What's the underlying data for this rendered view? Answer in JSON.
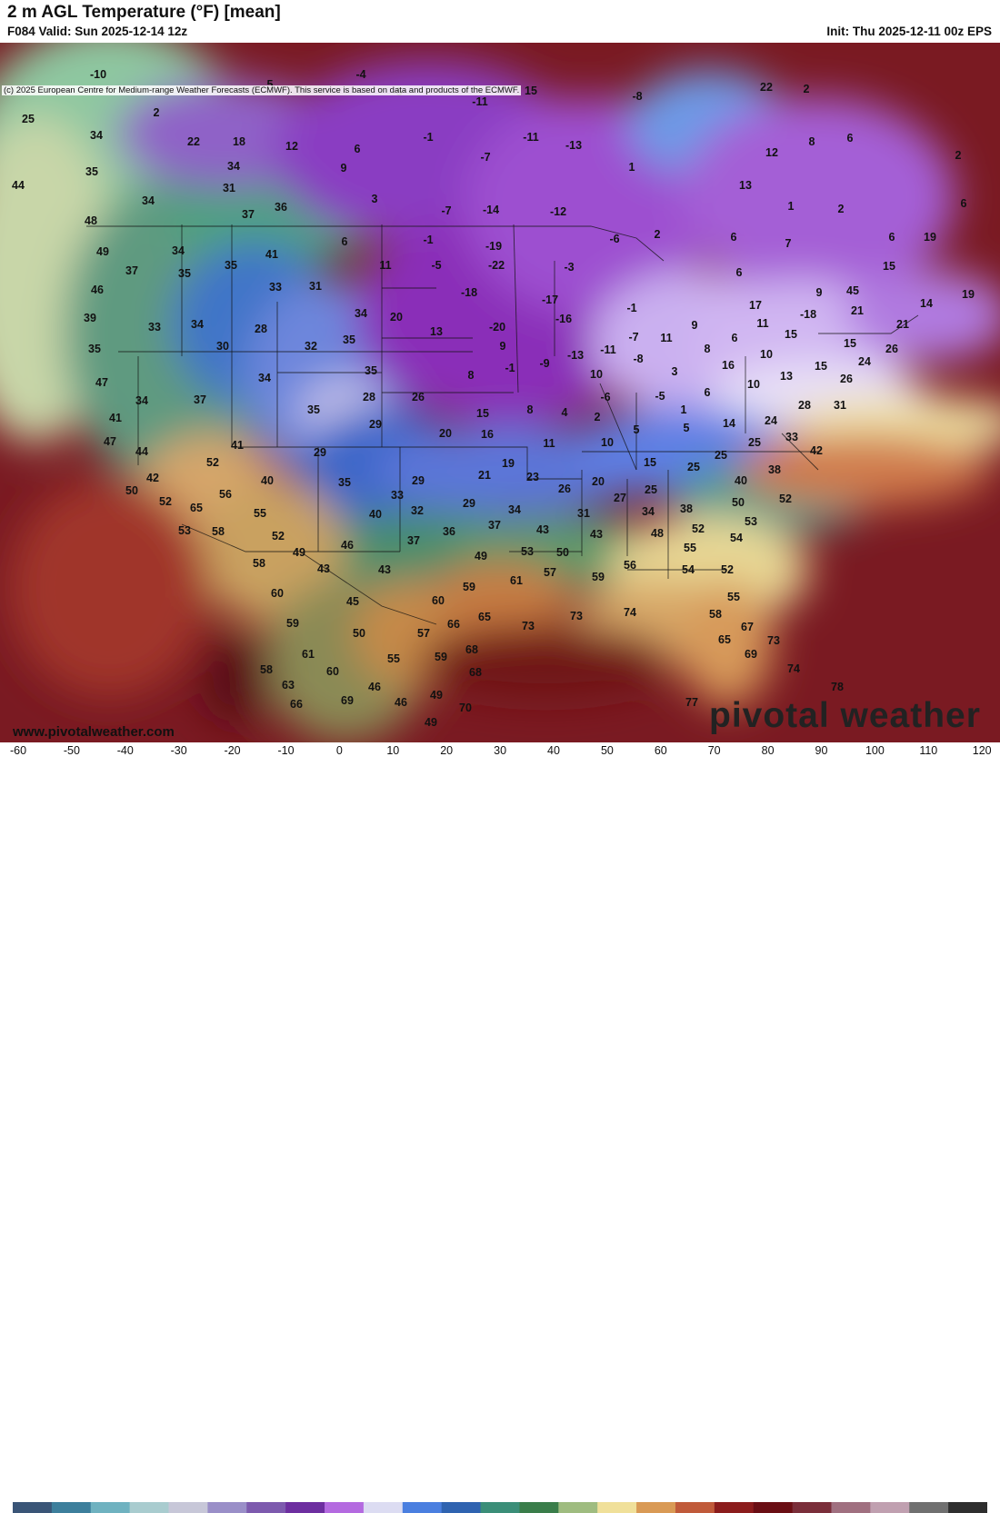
{
  "header": {
    "title": "2 m AGL Temperature (°F) [mean]",
    "valid": "F084 Valid: Sun 2025-12-14 12z",
    "init": "Init: Thu 2025-12-11 00z EPS"
  },
  "map": {
    "copyright": "(c) 2025 European Centre for Medium-range Weather Forecasts (ECMWF). This service is based on data and products of the ECMWF.",
    "website": "www.pivotalweather.com",
    "brand": "pivotal weather",
    "labels": [
      [
        "-10",
        108,
        82
      ],
      [
        "5",
        297,
        93
      ],
      [
        "-4",
        397,
        82
      ],
      [
        "-5",
        437,
        101
      ],
      [
        "15",
        584,
        100
      ],
      [
        "-8",
        701,
        106
      ],
      [
        "22",
        843,
        96
      ],
      [
        "2",
        887,
        98
      ],
      [
        "25",
        31,
        131
      ],
      [
        "2",
        172,
        124
      ],
      [
        "-11",
        528,
        112
      ],
      [
        "-1",
        471,
        151
      ],
      [
        "-11",
        584,
        151
      ],
      [
        "-13",
        631,
        160
      ],
      [
        "8",
        893,
        156
      ],
      [
        "6",
        935,
        152
      ],
      [
        "2",
        1054,
        171
      ],
      [
        "34",
        106,
        149
      ],
      [
        "22",
        213,
        156
      ],
      [
        "18",
        263,
        156
      ],
      [
        "12",
        321,
        161
      ],
      [
        "6",
        393,
        164
      ],
      [
        "-7",
        534,
        173
      ],
      [
        "12",
        849,
        168
      ],
      [
        "35",
        101,
        189
      ],
      [
        "34",
        257,
        183
      ],
      [
        "9",
        378,
        185
      ],
      [
        "1",
        695,
        184
      ],
      [
        "13",
        820,
        204
      ],
      [
        "44",
        20,
        204
      ],
      [
        "31",
        252,
        207
      ],
      [
        "34",
        163,
        221
      ],
      [
        "3",
        412,
        219
      ],
      [
        "-7",
        491,
        232
      ],
      [
        "-14",
        540,
        231
      ],
      [
        "-12",
        614,
        233
      ],
      [
        "1",
        870,
        227
      ],
      [
        "2",
        925,
        230
      ],
      [
        "6",
        1060,
        224
      ],
      [
        "48",
        100,
        243
      ],
      [
        "37",
        273,
        236
      ],
      [
        "36",
        309,
        228
      ],
      [
        "-1",
        471,
        264
      ],
      [
        "-19",
        543,
        271
      ],
      [
        "-6",
        676,
        263
      ],
      [
        "2",
        723,
        258
      ],
      [
        "6",
        807,
        261
      ],
      [
        "7",
        867,
        268
      ],
      [
        "6",
        981,
        261
      ],
      [
        "19",
        1023,
        261
      ],
      [
        "49",
        113,
        277
      ],
      [
        "34",
        196,
        276
      ],
      [
        "41",
        299,
        280
      ],
      [
        "6",
        379,
        266
      ],
      [
        "11",
        424,
        292
      ],
      [
        "-5",
        480,
        292
      ],
      [
        "-22",
        546,
        292
      ],
      [
        "-3",
        626,
        294
      ],
      [
        "6",
        813,
        300
      ],
      [
        "15",
        978,
        293
      ],
      [
        "37",
        145,
        298
      ],
      [
        "35",
        203,
        301
      ],
      [
        "35",
        254,
        292
      ],
      [
        "33",
        303,
        316
      ],
      [
        "31",
        347,
        315
      ],
      [
        "-18",
        516,
        322
      ],
      [
        "-17",
        605,
        330
      ],
      [
        "9",
        901,
        322
      ],
      [
        "45",
        938,
        320
      ],
      [
        "14",
        1019,
        334
      ],
      [
        "19",
        1065,
        324
      ],
      [
        "46",
        107,
        319
      ],
      [
        "34",
        397,
        345
      ],
      [
        "20",
        436,
        349
      ],
      [
        "-16",
        620,
        351
      ],
      [
        "-1",
        695,
        339
      ],
      [
        "17",
        831,
        336
      ],
      [
        "-18",
        889,
        346
      ],
      [
        "21",
        943,
        342
      ],
      [
        "39",
        99,
        350
      ],
      [
        "33",
        170,
        360
      ],
      [
        "34",
        217,
        357
      ],
      [
        "28",
        287,
        362
      ],
      [
        "13",
        480,
        365
      ],
      [
        "-20",
        547,
        360
      ],
      [
        "11",
        733,
        372
      ],
      [
        "9",
        764,
        358
      ],
      [
        "11",
        839,
        356
      ],
      [
        "15",
        870,
        368
      ],
      [
        "21",
        993,
        357
      ],
      [
        "35",
        104,
        384
      ],
      [
        "30",
        245,
        381
      ],
      [
        "32",
        342,
        381
      ],
      [
        "35",
        384,
        374
      ],
      [
        "9",
        553,
        381
      ],
      [
        "-9",
        599,
        400
      ],
      [
        "-13",
        633,
        391
      ],
      [
        "-11",
        669,
        385
      ],
      [
        "-7",
        697,
        371
      ],
      [
        "8",
        778,
        384
      ],
      [
        "6",
        808,
        372
      ],
      [
        "10",
        843,
        390
      ],
      [
        "15",
        935,
        378
      ],
      [
        "26",
        981,
        384
      ],
      [
        "47",
        112,
        421
      ],
      [
        "34",
        291,
        416
      ],
      [
        "35",
        408,
        408
      ],
      [
        "8",
        518,
        413
      ],
      [
        "-1",
        561,
        405
      ],
      [
        "10",
        656,
        412
      ],
      [
        "-8",
        702,
        395
      ],
      [
        "3",
        742,
        409
      ],
      [
        "16",
        801,
        402
      ],
      [
        "13",
        865,
        414
      ],
      [
        "15",
        903,
        403
      ],
      [
        "24",
        951,
        398
      ],
      [
        "34",
        156,
        441
      ],
      [
        "37",
        220,
        440
      ],
      [
        "28",
        406,
        437
      ],
      [
        "26",
        460,
        437
      ],
      [
        "-6",
        666,
        437
      ],
      [
        "-5",
        726,
        436
      ],
      [
        "6",
        778,
        432
      ],
      [
        "10",
        829,
        423
      ],
      [
        "26",
        931,
        417
      ],
      [
        "41",
        127,
        460
      ],
      [
        "35",
        345,
        451
      ],
      [
        "29",
        413,
        467
      ],
      [
        "8",
        583,
        451
      ],
      [
        "4",
        621,
        454
      ],
      [
        "2",
        657,
        459
      ],
      [
        "1",
        752,
        451
      ],
      [
        "14",
        802,
        466
      ],
      [
        "24",
        848,
        463
      ],
      [
        "28",
        885,
        446
      ],
      [
        "31",
        924,
        446
      ],
      [
        "47",
        121,
        486
      ],
      [
        "41",
        261,
        490
      ],
      [
        "29",
        352,
        498
      ],
      [
        "20",
        490,
        477
      ],
      [
        "15",
        531,
        455
      ],
      [
        "16",
        536,
        478
      ],
      [
        "11",
        604,
        488
      ],
      [
        "10",
        668,
        487
      ],
      [
        "5",
        700,
        473
      ],
      [
        "5",
        755,
        471
      ],
      [
        "25",
        830,
        487
      ],
      [
        "33",
        871,
        481
      ],
      [
        "42",
        898,
        496
      ],
      [
        "44",
        156,
        497
      ],
      [
        "52",
        234,
        509
      ],
      [
        "19",
        559,
        510
      ],
      [
        "15",
        715,
        509
      ],
      [
        "25",
        763,
        514
      ],
      [
        "25",
        793,
        501
      ],
      [
        "38",
        852,
        517
      ],
      [
        "42",
        168,
        526
      ],
      [
        "40",
        294,
        529
      ],
      [
        "35",
        379,
        531
      ],
      [
        "29",
        460,
        529
      ],
      [
        "21",
        533,
        523
      ],
      [
        "23",
        586,
        525
      ],
      [
        "20",
        658,
        530
      ],
      [
        "40",
        815,
        529
      ],
      [
        "50",
        145,
        540
      ],
      [
        "56",
        248,
        544
      ],
      [
        "33",
        437,
        545
      ],
      [
        "26",
        621,
        538
      ],
      [
        "27",
        682,
        548
      ],
      [
        "25",
        716,
        539
      ],
      [
        "52",
        864,
        549
      ],
      [
        "52",
        182,
        552
      ],
      [
        "65",
        216,
        559
      ],
      [
        "55",
        286,
        565
      ],
      [
        "40",
        413,
        566
      ],
      [
        "32",
        459,
        562
      ],
      [
        "29",
        516,
        554
      ],
      [
        "34",
        566,
        561
      ],
      [
        "31",
        642,
        565
      ],
      [
        "34",
        713,
        563
      ],
      [
        "38",
        755,
        560
      ],
      [
        "50",
        812,
        553
      ],
      [
        "53",
        826,
        574
      ],
      [
        "53",
        203,
        584
      ],
      [
        "58",
        240,
        585
      ],
      [
        "52",
        306,
        590
      ],
      [
        "46",
        382,
        600
      ],
      [
        "37",
        455,
        595
      ],
      [
        "36",
        494,
        585
      ],
      [
        "37",
        544,
        578
      ],
      [
        "43",
        597,
        583
      ],
      [
        "43",
        656,
        588
      ],
      [
        "48",
        723,
        587
      ],
      [
        "52",
        768,
        582
      ],
      [
        "55",
        759,
        603
      ],
      [
        "54",
        810,
        592
      ],
      [
        "49",
        329,
        608
      ],
      [
        "58",
        285,
        620
      ],
      [
        "43",
        356,
        626
      ],
      [
        "43",
        423,
        627
      ],
      [
        "49",
        529,
        612
      ],
      [
        "53",
        580,
        607
      ],
      [
        "50",
        619,
        608
      ],
      [
        "57",
        605,
        630
      ],
      [
        "59",
        658,
        635
      ],
      [
        "56",
        693,
        622
      ],
      [
        "54",
        757,
        627
      ],
      [
        "52",
        800,
        627
      ],
      [
        "60",
        305,
        653
      ],
      [
        "45",
        388,
        662
      ],
      [
        "60",
        482,
        661
      ],
      [
        "59",
        516,
        646
      ],
      [
        "61",
        568,
        639
      ],
      [
        "59",
        322,
        686
      ],
      [
        "66",
        499,
        687
      ],
      [
        "65",
        533,
        679
      ],
      [
        "73",
        581,
        689
      ],
      [
        "73",
        634,
        678
      ],
      [
        "74",
        693,
        674
      ],
      [
        "55",
        807,
        657
      ],
      [
        "58",
        787,
        676
      ],
      [
        "67",
        822,
        690
      ],
      [
        "50",
        395,
        697
      ],
      [
        "57",
        466,
        697
      ],
      [
        "68",
        519,
        715
      ],
      [
        "65",
        797,
        704
      ],
      [
        "69",
        826,
        720
      ],
      [
        "73",
        851,
        705
      ],
      [
        "61",
        339,
        720
      ],
      [
        "55",
        433,
        725
      ],
      [
        "59",
        485,
        723
      ],
      [
        "58",
        293,
        737
      ],
      [
        "60",
        366,
        739
      ],
      [
        "68",
        523,
        740
      ],
      [
        "74",
        873,
        736
      ],
      [
        "63",
        317,
        754
      ],
      [
        "46",
        412,
        756
      ],
      [
        "49",
        480,
        765
      ],
      [
        "46",
        441,
        773
      ],
      [
        "78",
        921,
        756
      ],
      [
        "66",
        326,
        775
      ],
      [
        "69",
        382,
        771
      ],
      [
        "70",
        512,
        779
      ],
      [
        "77",
        761,
        773
      ],
      [
        "49",
        474,
        795
      ]
    ]
  },
  "legend": {
    "ticks": [
      "-60",
      "-50",
      "-40",
      "-30",
      "-20",
      "-10",
      "0",
      "10",
      "20",
      "30",
      "40",
      "50",
      "60",
      "70",
      "80",
      "90",
      "100",
      "110",
      "120"
    ],
    "colors": [
      "#3a5577",
      "#3d7f9c",
      "#6fb2c0",
      "#a9cccf",
      "#c7c7d8",
      "#9a8fc8",
      "#7d5aae",
      "#6d2ea0",
      "#b46ae0",
      "#dcdcf2",
      "#4a7fe0",
      "#2f63b0",
      "#3b8e78",
      "#3a7d4a",
      "#9fbc80",
      "#f0e09a",
      "#d99a55",
      "#c05a3a",
      "#8b1c1c",
      "#6a0e14",
      "#7a2e3a",
      "#a07080",
      "#c0a0b0",
      "#707070",
      "#2e2e2e"
    ]
  }
}
